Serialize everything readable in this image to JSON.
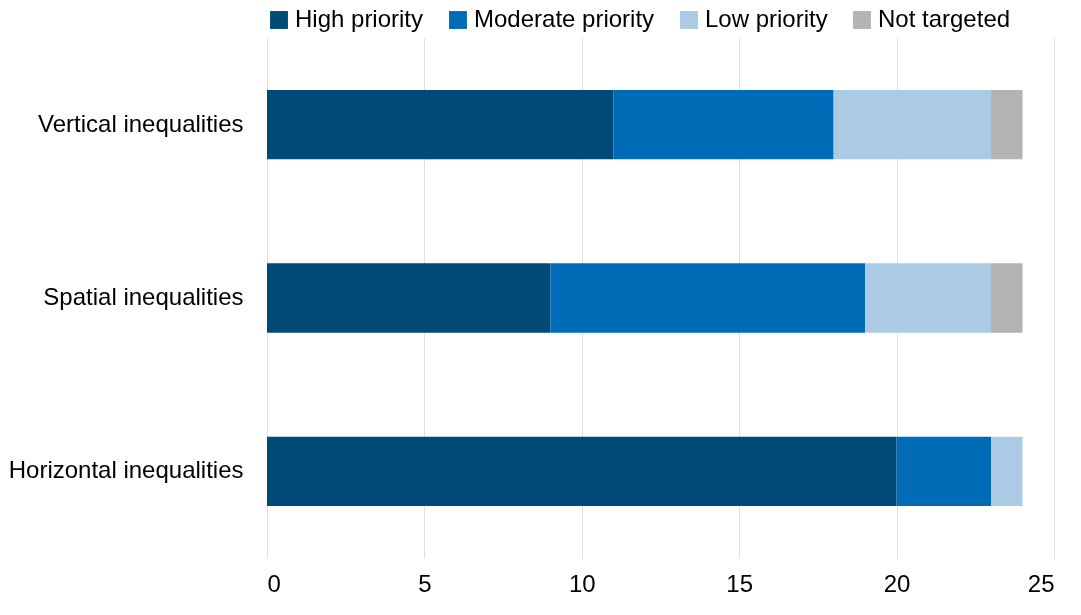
{
  "chart_data": {
    "type": "bar",
    "orientation": "horizontal",
    "stacked": true,
    "categories": [
      "Vertical inequalities",
      "Spatial inequalities",
      "Horizontal inequalities"
    ],
    "series": [
      {
        "name": "High priority",
        "color": "#004a77",
        "values": [
          11,
          9,
          20
        ]
      },
      {
        "name": "Moderate priority",
        "color": "#006bb6",
        "values": [
          7,
          10,
          3
        ]
      },
      {
        "name": "Low priority",
        "color": "#abcbe5",
        "values": [
          5,
          4,
          1
        ]
      },
      {
        "name": "Not targeted",
        "color": "#b3b3b3",
        "values": [
          1,
          1,
          0
        ]
      }
    ],
    "xlim": [
      0,
      25
    ],
    "xticks": [
      0,
      5,
      10,
      15,
      20,
      25
    ],
    "grid": "x",
    "legend": "top"
  }
}
